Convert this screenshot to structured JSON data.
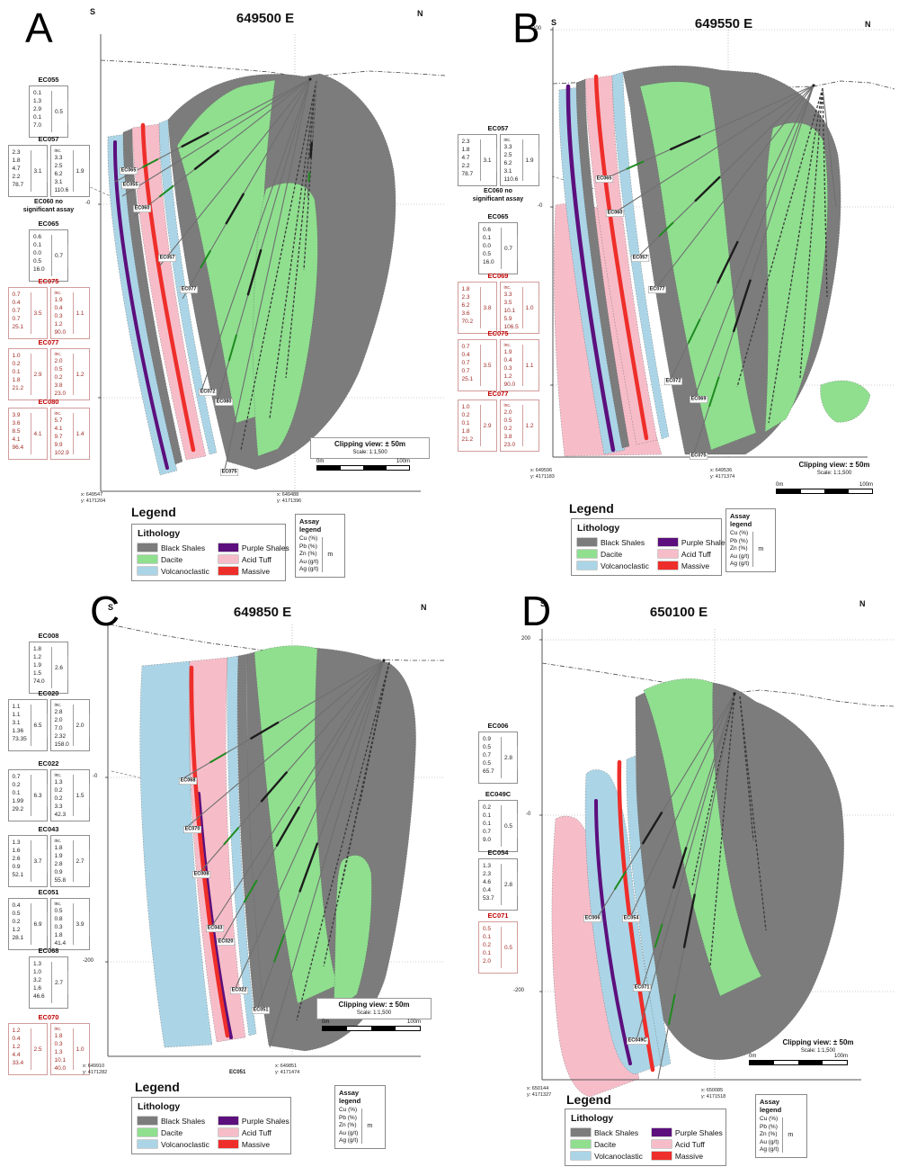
{
  "figure": {
    "compass": {
      "south": "S",
      "north": "N"
    },
    "legend": {
      "title": "Legend",
      "lithology_title": "Lithology",
      "items": [
        {
          "label": "Black Shales",
          "color": "#7c7c7c"
        },
        {
          "label": "Dacite",
          "color": "#8fdf8f"
        },
        {
          "label": "Volcanoclastic",
          "color": "#abd5e6"
        },
        {
          "label": "Purple Shales",
          "color": "#5c0f7d"
        },
        {
          "label": "Acid Tuff",
          "color": "#f6bdc9"
        },
        {
          "label": "Massive",
          "color": "#ee2e2a"
        }
      ],
      "assay": {
        "title": "Assay legend",
        "rows": [
          "Cu (%)",
          "Pb (%)",
          "Zn (%)",
          "Au (g/t)",
          "Ag (g/t)"
        ],
        "unit": "m"
      }
    },
    "clipping": {
      "line1": "Clipping view: ± 50m",
      "line2": "Scale: 1:1,500"
    },
    "scalebar": {
      "left": "0m",
      "right": "100m"
    }
  },
  "panels": [
    {
      "id": "A",
      "letter": "A",
      "title": "649500 E",
      "ticks": [
        "-0",
        "-200"
      ],
      "assays": [
        {
          "hole": "EC055",
          "style": "black",
          "main": {
            "values": [
              "0.1",
              "1.3",
              "2.9",
              "0.1",
              "7.0"
            ],
            "m": "0.5"
          }
        },
        {
          "hole": "EC057",
          "style": "black",
          "main": {
            "values": [
              "2.3",
              "1.8",
              "4.7",
              "2.2",
              "78.7"
            ],
            "m": "3.1"
          },
          "inc": {
            "label": "inc.",
            "values": [
              "3.3",
              "2.5",
              "6.2",
              "3.1",
              "110.6"
            ],
            "m": "1.9"
          }
        },
        {
          "hole": "EC060",
          "style": "black",
          "note_lines": [
            "EC060 no",
            "significant assay"
          ]
        },
        {
          "hole": "EC065",
          "style": "black",
          "main": {
            "values": [
              "0.6",
              "0.1",
              "0.0",
              "0.5",
              "16.0"
            ],
            "m": "0.7"
          }
        },
        {
          "hole": "EC075",
          "style": "red",
          "main": {
            "values": [
              "0.7",
              "0.4",
              "0.7",
              "0.7",
              "25.1"
            ],
            "m": "3.5"
          },
          "inc": {
            "label": "inc.",
            "values": [
              "1.9",
              "0.4",
              "0.3",
              "1.2",
              "90.0"
            ],
            "m": "1.1"
          }
        },
        {
          "hole": "EC077",
          "style": "red",
          "main": {
            "values": [
              "1.0",
              "0.2",
              "0.1",
              "1.8",
              "21.2"
            ],
            "m": "2.9"
          },
          "inc": {
            "label": "inc.",
            "values": [
              "2.0",
              "0.5",
              "0.2",
              "3.8",
              "23.0"
            ],
            "m": "1.2"
          }
        },
        {
          "hole": "EC080",
          "style": "red",
          "main": {
            "values": [
              "3.9",
              "3.6",
              "8.5",
              "4.1",
              "96.4"
            ],
            "m": "4.1"
          },
          "inc": {
            "label": "inc.",
            "values": [
              "5.7",
              "4.1",
              "9.7",
              "9.9",
              "102.9"
            ],
            "m": "1.4"
          }
        }
      ],
      "hole_labels": [
        "EC065",
        "EC055",
        "EC060",
        "EC057",
        "EC077",
        "EC072",
        "EC080",
        "EC075"
      ],
      "coords_left": {
        "x": "x: 649547",
        "y": "y: 4171204"
      },
      "coords_right": {
        "x": "x: 649488",
        "y": "y: 4171396"
      }
    },
    {
      "id": "B",
      "letter": "B",
      "title": "649550 E",
      "ticks": [
        "200",
        "-0",
        "-200"
      ],
      "assays": [
        {
          "hole": "EC057",
          "style": "black",
          "main": {
            "values": [
              "2.3",
              "1.8",
              "4.7",
              "2.2",
              "78.7"
            ],
            "m": "3.1"
          },
          "inc": {
            "label": "inc.",
            "values": [
              "3.3",
              "2.5",
              "6.2",
              "3.1",
              "110.6"
            ],
            "m": "1.9"
          }
        },
        {
          "hole": "EC060",
          "style": "black",
          "note_lines": [
            "EC060 no",
            "significant assay"
          ]
        },
        {
          "hole": "EC065",
          "style": "black",
          "main": {
            "values": [
              "0.6",
              "0.1",
              "0.0",
              "0.5",
              "16.0"
            ],
            "m": "0.7"
          }
        },
        {
          "hole": "EC069",
          "style": "red",
          "main": {
            "values": [
              "1.8",
              "2.3",
              "6.2",
              "3.6",
              "70.2"
            ],
            "m": "3.8"
          },
          "inc": {
            "label": "inc.",
            "values": [
              "3.3",
              "3.5",
              "10.1",
              "5.9",
              "106.5"
            ],
            "m": "1.0"
          }
        },
        {
          "hole": "EC075",
          "style": "red",
          "main": {
            "values": [
              "0.7",
              "0.4",
              "0.7",
              "0.7",
              "25.1"
            ],
            "m": "3.5"
          },
          "inc": {
            "label": "inc.",
            "values": [
              "1.9",
              "0.4",
              "0.3",
              "1.2",
              "90.0"
            ],
            "m": "1.1"
          }
        },
        {
          "hole": "EC077",
          "style": "red",
          "main": {
            "values": [
              "1.0",
              "0.2",
              "0.1",
              "1.8",
              "21.2"
            ],
            "m": "2.9"
          },
          "inc": {
            "label": "inc.",
            "values": [
              "2.0",
              "0.5",
              "0.2",
              "3.8",
              "23.0"
            ],
            "m": "1.2"
          }
        }
      ],
      "hole_labels": [
        "EC065",
        "EC060",
        "EC057",
        "EC077",
        "EC072",
        "EC069",
        "EC075"
      ],
      "coords_left": {
        "x": "x: 649596",
        "y": "y: 4171183"
      },
      "coords_right": {
        "x": "x: 649536",
        "y": "y: 4171374"
      }
    },
    {
      "id": "C",
      "letter": "C",
      "title": "649850 E",
      "ticks": [
        "-0",
        "-200"
      ],
      "assays": [
        {
          "hole": "EC008",
          "style": "black",
          "main": {
            "values": [
              "1.8",
              "1.2",
              "1.9",
              "1.5",
              "74.0"
            ],
            "m": "2.6"
          }
        },
        {
          "hole": "EC020",
          "style": "black",
          "main": {
            "values": [
              "1.1",
              "1.1",
              "3.1",
              "1.36",
              "73.35"
            ],
            "m": "6.5"
          },
          "inc": {
            "label": "inc.",
            "values": [
              "2.8",
              "2.0",
              "7.0",
              "2.32",
              "158.0"
            ],
            "m": "2.0"
          }
        },
        {
          "hole": "EC022",
          "style": "black",
          "main": {
            "values": [
              "0.7",
              "0.2",
              "0.1",
              "1.99",
              "29.2"
            ],
            "m": "6.3"
          },
          "inc": {
            "label": "inc.",
            "values": [
              "1.3",
              "0.2",
              "0.2",
              "3.3",
              "42.3"
            ],
            "m": "1.5"
          }
        },
        {
          "hole": "EC043",
          "style": "black",
          "main": {
            "values": [
              "1.3",
              "1.6",
              "2.6",
              "0.9",
              "52.1"
            ],
            "m": "3.7"
          },
          "inc": {
            "label": "inc.",
            "values": [
              "1.8",
              "1.9",
              "2.8",
              "0.9",
              "55.8"
            ],
            "m": "2.7"
          }
        },
        {
          "hole": "EC051",
          "style": "black",
          "main": {
            "values": [
              "0.4",
              "0.5",
              "0.2",
              "1.2",
              "28.1"
            ],
            "m": "6.9"
          },
          "inc": {
            "label": "inc.",
            "values": [
              "0.5",
              "0.8",
              "0.3",
              "1.8",
              "41.4"
            ],
            "m": "3.9"
          }
        },
        {
          "hole": "EC068",
          "style": "black",
          "main": {
            "values": [
              "1.3",
              "1.0",
              "3.2",
              "1.6",
              "46.6"
            ],
            "m": "2.7"
          }
        },
        {
          "hole": "EC070",
          "style": "red",
          "main": {
            "values": [
              "1.2",
              "0.4",
              "1.2",
              "4.4",
              "33.4"
            ],
            "m": "2.5"
          },
          "inc": {
            "label": "inc.",
            "values": [
              "1.8",
              "0.3",
              "1.3",
              "10.1",
              "40.0"
            ],
            "m": "1.0"
          }
        }
      ],
      "hole_labels": [
        "EC068",
        "EC070",
        "EC008",
        "EC043",
        "EC020",
        "EC022",
        "EC051"
      ],
      "bottom_label": "EC051",
      "coords_left": {
        "x": "x: 649910",
        "y": "y: 4171282"
      },
      "coords_right": {
        "x": "x: 649851",
        "y": "y: 4171474"
      }
    },
    {
      "id": "D",
      "letter": "D",
      "title": "650100 E",
      "ticks": [
        "200",
        "-0",
        "-200"
      ],
      "assays": [
        {
          "hole": "EC006",
          "style": "black",
          "main": {
            "values": [
              "0.9",
              "0.5",
              "0.7",
              "0.5",
              "65.7"
            ],
            "m": "2.8"
          }
        },
        {
          "hole": "EC049C",
          "style": "black",
          "main": {
            "values": [
              "0.2",
              "0.1",
              "0.1",
              "0.7",
              "9.0"
            ],
            "m": "0.5"
          }
        },
        {
          "hole": "EC054",
          "style": "black",
          "main": {
            "values": [
              "1.3",
              "2.3",
              "4.6",
              "0.4",
              "53.7"
            ],
            "m": "2.8"
          }
        },
        {
          "hole": "EC071",
          "style": "red",
          "main": {
            "values": [
              "0.5",
              "0.1",
              "0.2",
              "0.1",
              "2.0"
            ],
            "m": "0.5"
          }
        }
      ],
      "hole_labels": [
        "EC006",
        "EC054",
        "EC071",
        "EC049C"
      ],
      "coords_left": {
        "x": "x: 650144",
        "y": "y: 4171327"
      },
      "coords_right": {
        "x": "x: 650085",
        "y": "y: 4171518"
      }
    }
  ]
}
